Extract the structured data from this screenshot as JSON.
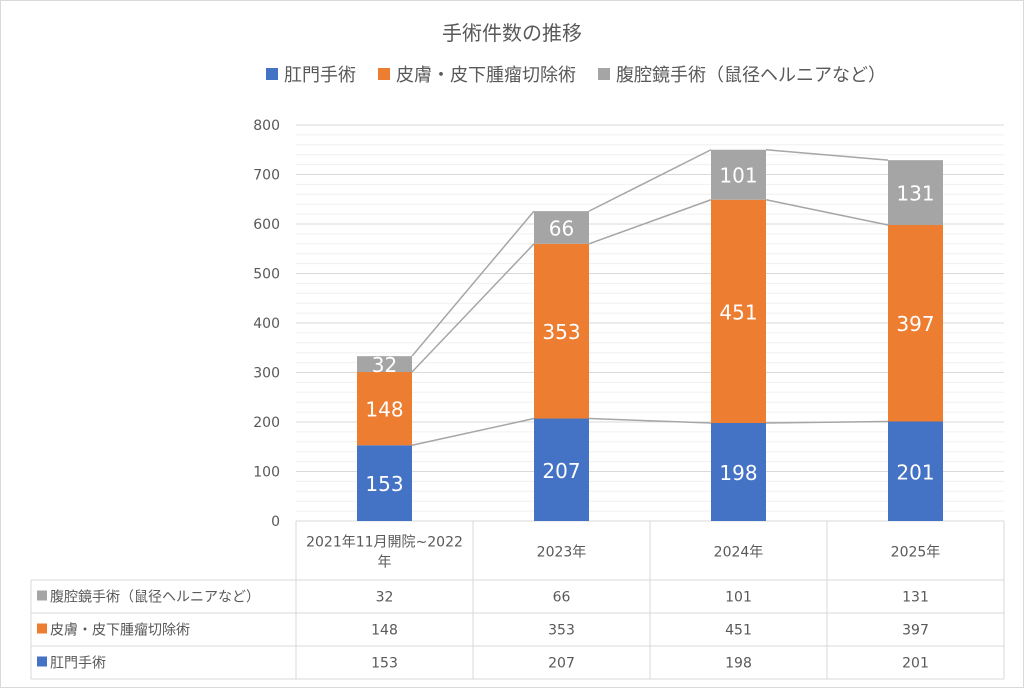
{
  "chart_data": {
    "type": "bar",
    "stacked": true,
    "title": "手術件数の推移",
    "categories": [
      "2021年11月開院~2022年",
      "2023年",
      "2024年",
      "2025年"
    ],
    "category_lines": [
      [
        "2021年11月開院~2022",
        "年"
      ],
      [
        "2023年"
      ],
      [
        "2024年"
      ],
      [
        "2025年"
      ]
    ],
    "series": [
      {
        "name": "肛門手術",
        "values": [
          153,
          207,
          198,
          201
        ],
        "color": "#4472C4"
      },
      {
        "name": "皮膚・皮下腫瘤切除術",
        "values": [
          148,
          353,
          451,
          397
        ],
        "color": "#ED7D31"
      },
      {
        "name": "腹腔鏡手術（鼠径ヘルニアなど）",
        "values": [
          32,
          66,
          101,
          131
        ],
        "color": "#A5A5A5"
      }
    ],
    "ylim": [
      0,
      800
    ],
    "yticks": [
      0,
      100,
      200,
      300,
      400,
      500,
      600,
      700,
      800
    ],
    "xlabel": "",
    "ylabel": "",
    "legend": "top",
    "grid": true,
    "data_table": true,
    "table_row_order": [
      "腹腔鏡手術（鼠径ヘルニアなど）",
      "皮膚・皮下腫瘤切除術",
      "肛門手術"
    ],
    "series_lines": true
  }
}
